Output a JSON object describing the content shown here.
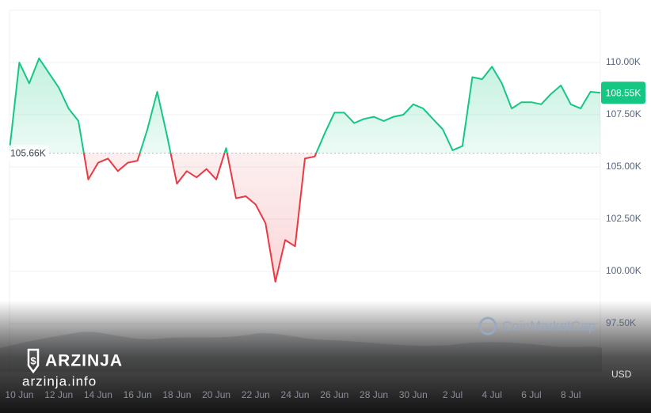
{
  "chart_data": {
    "type": "line",
    "categories": [
      null,
      "10 Jun",
      null,
      null,
      null,
      "12 Jun",
      null,
      null,
      null,
      "14 Jun",
      null,
      null,
      null,
      "16 Jun",
      null,
      null,
      null,
      "18 Jun",
      null,
      null,
      null,
      "20 Jun",
      null,
      null,
      null,
      "22 Jun",
      null,
      null,
      null,
      "24 Jun",
      null,
      null,
      null,
      "26 Jun",
      null,
      null,
      null,
      "28 Jun",
      null,
      null,
      null,
      "30 Jun",
      null,
      null,
      null,
      "2 Jul",
      null,
      null,
      null,
      "4 Jul",
      null,
      null,
      null,
      "6 Jul",
      null,
      null,
      null,
      "8 Jul",
      null,
      null,
      null
    ],
    "values": [
      105.8,
      110.0,
      109.0,
      110.2,
      109.5,
      108.8,
      107.8,
      107.2,
      104.4,
      105.2,
      105.4,
      104.8,
      105.2,
      105.3,
      106.8,
      108.6,
      106.5,
      104.2,
      104.8,
      104.5,
      104.9,
      104.4,
      105.9,
      103.5,
      103.6,
      103.2,
      102.3,
      99.5,
      101.5,
      101.2,
      105.4,
      105.5,
      106.6,
      107.6,
      107.6,
      107.1,
      107.3,
      107.4,
      107.2,
      107.4,
      107.5,
      108.0,
      107.8,
      107.3,
      106.8,
      105.8,
      106.0,
      109.3,
      109.2,
      109.8,
      109.0,
      107.8,
      108.1,
      108.1,
      108.0,
      108.5,
      108.9,
      108.0,
      107.8,
      108.6,
      108.55
    ],
    "up_color": "#16c784",
    "down_color": "#ea3943",
    "baseline": {
      "value": 105.66,
      "label": "105.66K"
    },
    "last": {
      "value": 108.55,
      "label": "108.55K"
    },
    "ylim": [
      95,
      112.5
    ],
    "yticks": [
      {
        "value": 97.5,
        "label": "97.50K"
      },
      {
        "value": 100,
        "label": "100.00K"
      },
      {
        "value": 102.5,
        "label": "102.50K"
      },
      {
        "value": 105,
        "label": "105.00K"
      },
      {
        "value": 107.5,
        "label": "107.50K"
      },
      {
        "value": 110,
        "label": "110.00K"
      }
    ],
    "grid": true,
    "axis_unit": "USD",
    "watermark": "CoinMarketCap",
    "brand": "ARZINJA",
    "site": "arzinja.info"
  }
}
